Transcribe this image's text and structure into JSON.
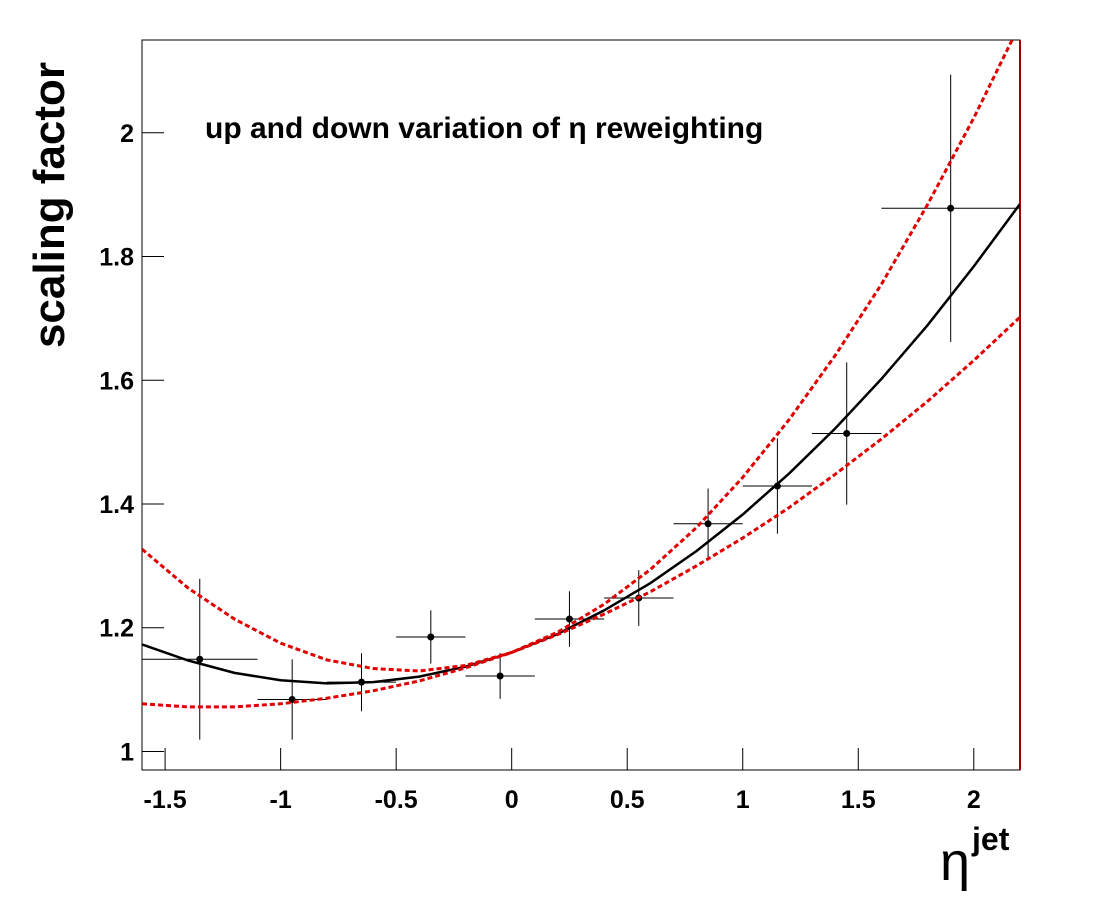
{
  "chart_data": {
    "type": "scatter",
    "title": "up and down variation of η reweighting",
    "xlabel": "η",
    "xlabel_superscript": "jet",
    "ylabel": "scaling factor",
    "xlim": [
      -1.6,
      2.2
    ],
    "ylim": [
      0.97,
      2.15
    ],
    "xticks": [
      -1.5,
      -1,
      -0.5,
      0,
      0.5,
      1,
      1.5,
      2
    ],
    "yticks": [
      1,
      1.2,
      1.4,
      1.6,
      1.8,
      2
    ],
    "series": [
      {
        "style": "errorbar",
        "color": "#000000",
        "x": [
          -1.35,
          -0.95,
          -0.65,
          -0.35,
          -0.05,
          0.25,
          0.55,
          0.85,
          1.15,
          1.45,
          1.9
        ],
        "y": [
          1.149,
          1.084,
          1.112,
          1.185,
          1.122,
          1.214,
          1.248,
          1.368,
          1.429,
          1.514,
          1.878
        ],
        "xerr": [
          0.25,
          0.15,
          0.15,
          0.15,
          0.15,
          0.15,
          0.15,
          0.15,
          0.15,
          0.15,
          0.3
        ],
        "yerr": [
          0.13,
          0.065,
          0.047,
          0.043,
          0.037,
          0.045,
          0.045,
          0.057,
          0.077,
          0.115,
          0.216
        ]
      },
      {
        "style": "line",
        "color": "#000000",
        "dashed": false,
        "x": [
          -1.6,
          -1.4,
          -1.2,
          -1.0,
          -0.8,
          -0.6,
          -0.4,
          -0.2,
          0,
          0.2,
          0.4,
          0.6,
          0.8,
          1.0,
          1.2,
          1.4,
          1.6,
          1.8,
          2.0,
          2.2
        ],
        "y": [
          1.173,
          1.147,
          1.127,
          1.115,
          1.11,
          1.112,
          1.121,
          1.137,
          1.16,
          1.19,
          1.228,
          1.272,
          1.324,
          1.383,
          1.449,
          1.522,
          1.602,
          1.689,
          1.784,
          1.885
        ]
      },
      {
        "style": "line",
        "color": "#e00000",
        "dashed": true,
        "x": [
          -1.6,
          -1.4,
          -1.2,
          -1.0,
          -0.8,
          -0.6,
          -0.4,
          -0.2,
          0,
          0.2,
          0.4,
          0.6,
          0.8,
          1.0,
          1.2,
          1.4,
          1.6,
          1.8,
          2.0,
          2.2
        ],
        "y": [
          1.327,
          1.264,
          1.214,
          1.175,
          1.148,
          1.134,
          1.13,
          1.139,
          1.16,
          1.193,
          1.238,
          1.294,
          1.362,
          1.443,
          1.536,
          1.64,
          1.755,
          1.884,
          2.024,
          2.176
        ]
      },
      {
        "style": "line",
        "color": "#e00000",
        "dashed": true,
        "x": [
          -1.6,
          -1.4,
          -1.2,
          -1.0,
          -0.8,
          -0.6,
          -0.4,
          -0.2,
          0,
          0.2,
          0.4,
          0.6,
          0.8,
          1.0,
          1.2,
          1.4,
          1.6,
          1.8,
          2.0,
          2.2
        ],
        "y": [
          1.077,
          1.072,
          1.072,
          1.077,
          1.086,
          1.098,
          1.114,
          1.135,
          1.16,
          1.189,
          1.222,
          1.258,
          1.3,
          1.345,
          1.394,
          1.448,
          1.505,
          1.566,
          1.632,
          1.702
        ]
      }
    ]
  }
}
